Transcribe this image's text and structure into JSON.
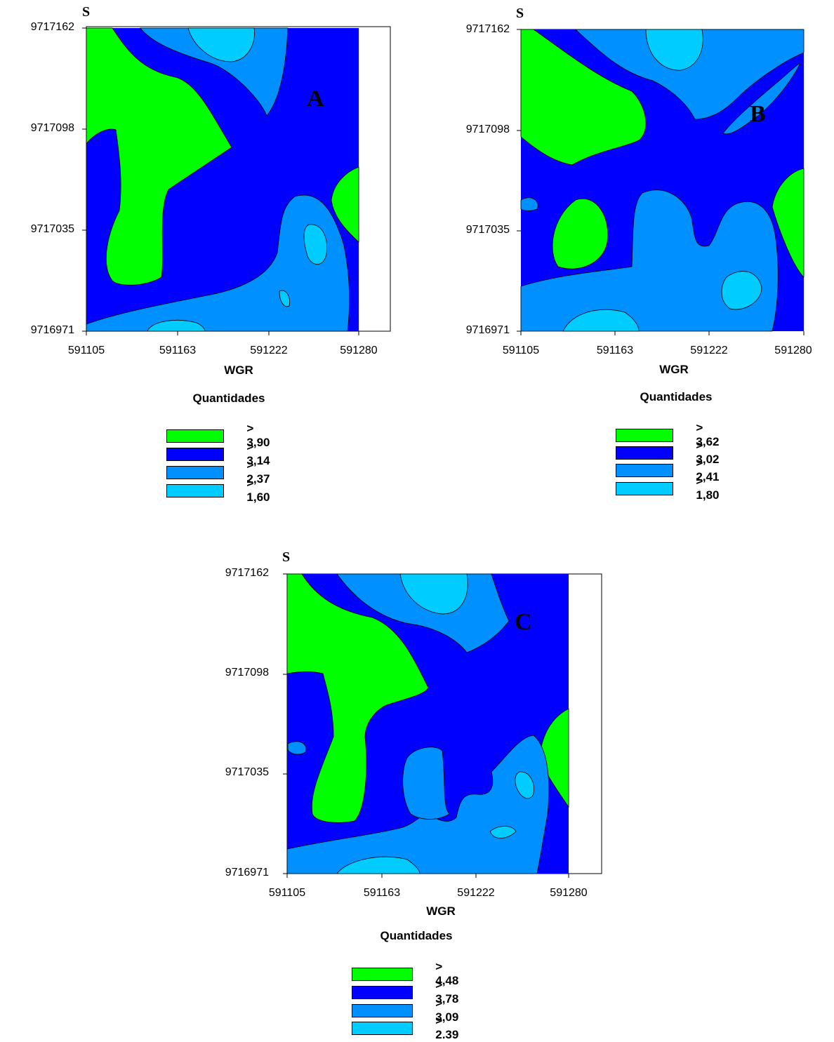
{
  "colors": {
    "green": "#00ff00",
    "dark_blue": "#0000ff",
    "medium_blue": "#0090ff",
    "light_blue": "#00ccff",
    "outline": "#000000",
    "background": "#ffffff"
  },
  "chart_data": [
    {
      "type": "heatmap",
      "subtype": "filled contour map",
      "panel_letter": "A",
      "north_label": "S",
      "xlabel": "WGR",
      "x_ticks": [
        "591105",
        "591163",
        "591222",
        "591280"
      ],
      "y_ticks": [
        "9717162",
        "9717098",
        "9717035",
        "9716971"
      ],
      "xlim": [
        591105,
        591280
      ],
      "ylim": [
        9716971,
        9717162
      ],
      "legend_title": "Quantidades",
      "legend_position": "below",
      "levels": [
        {
          "label": "> 3,90",
          "threshold": 3.9,
          "color": "#00ff00"
        },
        {
          "label": "> 3,14",
          "threshold": 3.14,
          "color": "#0000ff"
        },
        {
          "label": "> 2,37",
          "threshold": 2.37,
          "color": "#0090ff"
        },
        {
          "label": "> 1,60",
          "threshold": 1.6,
          "color": "#00ccff"
        }
      ]
    },
    {
      "type": "heatmap",
      "subtype": "filled contour map",
      "panel_letter": "B",
      "north_label": "S",
      "xlabel": "WGR",
      "x_ticks": [
        "591105",
        "591163",
        "591222",
        "591280"
      ],
      "y_ticks": [
        "9717162",
        "9717098",
        "9717035",
        "9716971"
      ],
      "xlim": [
        591105,
        591280
      ],
      "ylim": [
        9716971,
        9717162
      ],
      "legend_title": "Quantidades",
      "legend_position": "below",
      "levels": [
        {
          "label": "> 3,62",
          "threshold": 3.62,
          "color": "#00ff00"
        },
        {
          "label": "> 3,02",
          "threshold": 3.02,
          "color": "#0000ff"
        },
        {
          "label": "> 2,41",
          "threshold": 2.41,
          "color": "#0090ff"
        },
        {
          "label": "> 1,80",
          "threshold": 1.8,
          "color": "#00ccff"
        }
      ]
    },
    {
      "type": "heatmap",
      "subtype": "filled contour map",
      "panel_letter": "C",
      "north_label": "S",
      "xlabel": "WGR",
      "x_ticks": [
        "591105",
        "591163",
        "591222",
        "591280"
      ],
      "y_ticks": [
        "9717162",
        "9717098",
        "9717035",
        "9716971"
      ],
      "xlim": [
        591105,
        591280
      ],
      "ylim": [
        9716971,
        9717162
      ],
      "legend_title": "Quantidades",
      "legend_position": "below",
      "levels": [
        {
          "label": "> 4,48",
          "threshold": 4.48,
          "color": "#00ff00"
        },
        {
          "label": "> 3,78",
          "threshold": 3.78,
          "color": "#0000ff"
        },
        {
          "label": "> 3,09",
          "threshold": 3.09,
          "color": "#0090ff"
        },
        {
          "label": "> 2.39",
          "threshold": 2.39,
          "color": "#00ccff"
        }
      ]
    }
  ]
}
